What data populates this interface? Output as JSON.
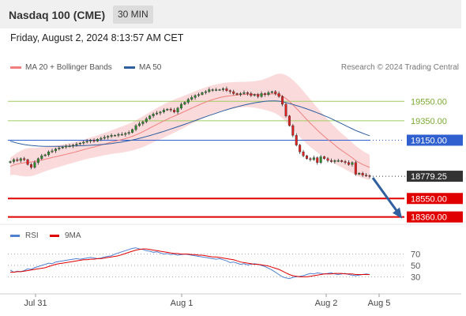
{
  "header": {
    "title": "Nasdaq 100 (CME)",
    "timeframe": "30 MIN"
  },
  "date": "Friday, August 2, 2024 8:13:57 AM CET",
  "legend": [
    {
      "label": "MA 20 + Bollinger Bands",
      "color": "#f08080"
    },
    {
      "label": "MA 50",
      "color": "#2f5f9f"
    }
  ],
  "rsi_legend": [
    {
      "label": "RSI",
      "color": "#5080d0"
    },
    {
      "label": "9MA",
      "color": "#e00000"
    }
  ],
  "credit": "Research © 2024 Trading Central",
  "colors": {
    "up": "#2e8b2e",
    "down": "#e02020",
    "bb": "#fadada",
    "ma20": "#f08080",
    "ma50": "#2f5f9f",
    "resistance": "#a0cc60",
    "pivot": "#3060d0",
    "support": "#e00000",
    "current": "#333333"
  },
  "chart_data": [
    {
      "type": "candlestick",
      "title": "Nasdaq 100 (CME) 30 MIN",
      "x_ticks": [
        "Jul 31",
        "Aug 1",
        "Aug 2",
        "Aug 5"
      ],
      "ylim": [
        18300,
        19780
      ],
      "levels": [
        {
          "value": 19550.0,
          "label": "19550.00",
          "kind": "resistance"
        },
        {
          "value": 19350.0,
          "label": "19350.00",
          "kind": "resistance"
        },
        {
          "value": 19150.0,
          "label": "19150.00",
          "kind": "pivot"
        },
        {
          "value": 18779.25,
          "label": "18779.25",
          "kind": "current"
        },
        {
          "value": 18550.0,
          "label": "18550.00",
          "kind": "support"
        },
        {
          "value": 18360.0,
          "label": "18360.00",
          "kind": "support"
        }
      ],
      "close": [
        18930,
        18950,
        18940,
        18960,
        18950,
        18900,
        18870,
        18920,
        18960,
        18990,
        19000,
        19030,
        19040,
        19060,
        19070,
        19080,
        19090,
        19090,
        19100,
        19110,
        19120,
        19130,
        19140,
        19150,
        19140,
        19160,
        19170,
        19180,
        19190,
        19200,
        19200,
        19210,
        19210,
        19220,
        19230,
        19260,
        19300,
        19320,
        19340,
        19370,
        19400,
        19420,
        19430,
        19440,
        19460,
        19470,
        19460,
        19440,
        19480,
        19520,
        19540,
        19570,
        19590,
        19610,
        19620,
        19640,
        19650,
        19670,
        19670,
        19670,
        19670,
        19680,
        19660,
        19650,
        19630,
        19620,
        19630,
        19640,
        19630,
        19610,
        19620,
        19600,
        19630,
        19620,
        19640,
        19650,
        19630,
        19600,
        19520,
        19400,
        19300,
        19200,
        19100,
        19030,
        18990,
        18960,
        18950,
        18970,
        18920,
        18980,
        18960,
        18940,
        18930,
        18940,
        18940,
        18930,
        18920,
        18900,
        18920,
        18800,
        18810,
        18790,
        18785,
        18779.25
      ],
      "ma20": [
        18880,
        18895,
        18905,
        18912,
        18918,
        18922,
        18925,
        18930,
        18938,
        18946,
        18955,
        18963,
        18972,
        18980,
        18988,
        18996,
        19005,
        19013,
        19022,
        19032,
        19042,
        19052,
        19062,
        19072,
        19080,
        19090,
        19100,
        19110,
        19120,
        19130,
        19138,
        19148,
        19157,
        19167,
        19178,
        19190,
        19205,
        19220,
        19238,
        19256,
        19275,
        19294,
        19312,
        19330,
        19348,
        19366,
        19383,
        19398,
        19414,
        19430,
        19446,
        19463,
        19480,
        19496,
        19512,
        19528,
        19542,
        19556,
        19568,
        19578,
        19588,
        19597,
        19603,
        19608,
        19612,
        19616,
        19619,
        19621,
        19622,
        19622,
        19622,
        19621,
        19620,
        19622,
        19624,
        19626,
        19626,
        19620,
        19605,
        19580,
        19550,
        19515,
        19478,
        19440,
        19400,
        19362,
        19325,
        19290,
        19255,
        19220,
        19188,
        19158,
        19130,
        19100,
        19070,
        19045,
        19020,
        18995,
        18970,
        18940,
        18920,
        18900,
        18885,
        18870
      ],
      "ma50": [
        19140,
        19130,
        19120,
        19112,
        19105,
        19100,
        19096,
        19093,
        19090,
        19088,
        19087,
        19086,
        19086,
        19086,
        19087,
        19088,
        19089,
        19090,
        19091,
        19092,
        19093,
        19094,
        19096,
        19098,
        19100,
        19102,
        19105,
        19108,
        19112,
        19116,
        19121,
        19126,
        19132,
        19138,
        19145,
        19152,
        19160,
        19169,
        19178,
        19188,
        19198,
        19208,
        19219,
        19230,
        19241,
        19253,
        19265,
        19277,
        19289,
        19301,
        19313,
        19326,
        19339,
        19352,
        19365,
        19378,
        19391,
        19404,
        19416,
        19428,
        19440,
        19452,
        19463,
        19474,
        19484,
        19494,
        19503,
        19512,
        19520,
        19527,
        19534,
        19540,
        19545,
        19550,
        19553,
        19555,
        19555,
        19552,
        19546,
        19538,
        19528,
        19518,
        19507,
        19496,
        19484,
        19472,
        19460,
        19446,
        19432,
        19418,
        19403,
        19388,
        19372,
        19355,
        19338,
        19320,
        19302,
        19285,
        19268,
        19250,
        19236,
        19222,
        19208,
        19196
      ],
      "bb_width": [
        90,
        100,
        115,
        130,
        140,
        145,
        145,
        140,
        135,
        130,
        125,
        120,
        118,
        115,
        112,
        110,
        108,
        106,
        105,
        104,
        104,
        104,
        105,
        106,
        108,
        110,
        112,
        115,
        118,
        122,
        126,
        130,
        134,
        138,
        142,
        146,
        150,
        154,
        158,
        161,
        164,
        166,
        168,
        170,
        172,
        172,
        172,
        170,
        168,
        166,
        164,
        162,
        160,
        158,
        156,
        154,
        152,
        150,
        148,
        146,
        144,
        142,
        140,
        138,
        136,
        134,
        132,
        130,
        130,
        132,
        136,
        142,
        150,
        160,
        172,
        185,
        200,
        215,
        228,
        240,
        250,
        255,
        258,
        258,
        255,
        250,
        245,
        238,
        230,
        222,
        214,
        206,
        198,
        190,
        182,
        176,
        170,
        164,
        158,
        152,
        146,
        140,
        135,
        130
      ]
    },
    {
      "type": "line",
      "title": "RSI",
      "yticks": [
        30,
        50,
        70
      ],
      "ylim": [
        0,
        100
      ],
      "series": [
        {
          "name": "RSI",
          "values": [
            42,
            38,
            40,
            39,
            41,
            44,
            43,
            46,
            48,
            50,
            52,
            54,
            53,
            56,
            57,
            58,
            59,
            60,
            61,
            62,
            61,
            62,
            63,
            64,
            63,
            62,
            63,
            65,
            66,
            67,
            70,
            72,
            74,
            76,
            78,
            80,
            81,
            79,
            78,
            76,
            75,
            73,
            74,
            72,
            70,
            71,
            69,
            70,
            68,
            69,
            70,
            69,
            68,
            67,
            66,
            65,
            64,
            63,
            62,
            61,
            62,
            60,
            58,
            55,
            56,
            54,
            52,
            53,
            51,
            52,
            53,
            52,
            50,
            48,
            45,
            42,
            38,
            34,
            30,
            28,
            27,
            29,
            30,
            31,
            32,
            34,
            36,
            35,
            37,
            36,
            35,
            36,
            37,
            35,
            34,
            35,
            36,
            34,
            33,
            32,
            33,
            34,
            35,
            34
          ]
        },
        {
          "name": "9MA",
          "values": [
            38,
            38,
            39,
            39,
            40,
            41,
            42,
            43,
            44,
            45,
            46,
            48,
            50,
            52,
            53,
            54,
            55,
            56,
            57,
            58,
            59,
            60,
            60,
            61,
            61,
            62,
            62,
            63,
            64,
            65,
            66,
            67,
            69,
            71,
            73,
            75,
            77,
            78,
            79,
            79,
            78,
            77,
            76,
            75,
            74,
            73,
            72,
            71,
            71,
            70,
            70,
            70,
            69,
            69,
            68,
            68,
            67,
            66,
            65,
            65,
            64,
            63,
            62,
            61,
            60,
            58,
            56,
            55,
            54,
            53,
            52,
            52,
            51,
            50,
            49,
            47,
            45,
            43,
            40,
            37,
            34,
            32,
            31,
            30,
            30,
            30,
            31,
            32,
            33,
            34,
            35,
            35,
            35,
            36,
            36,
            36,
            35,
            35,
            35,
            34,
            34,
            34,
            34,
            34
          ]
        }
      ]
    }
  ]
}
